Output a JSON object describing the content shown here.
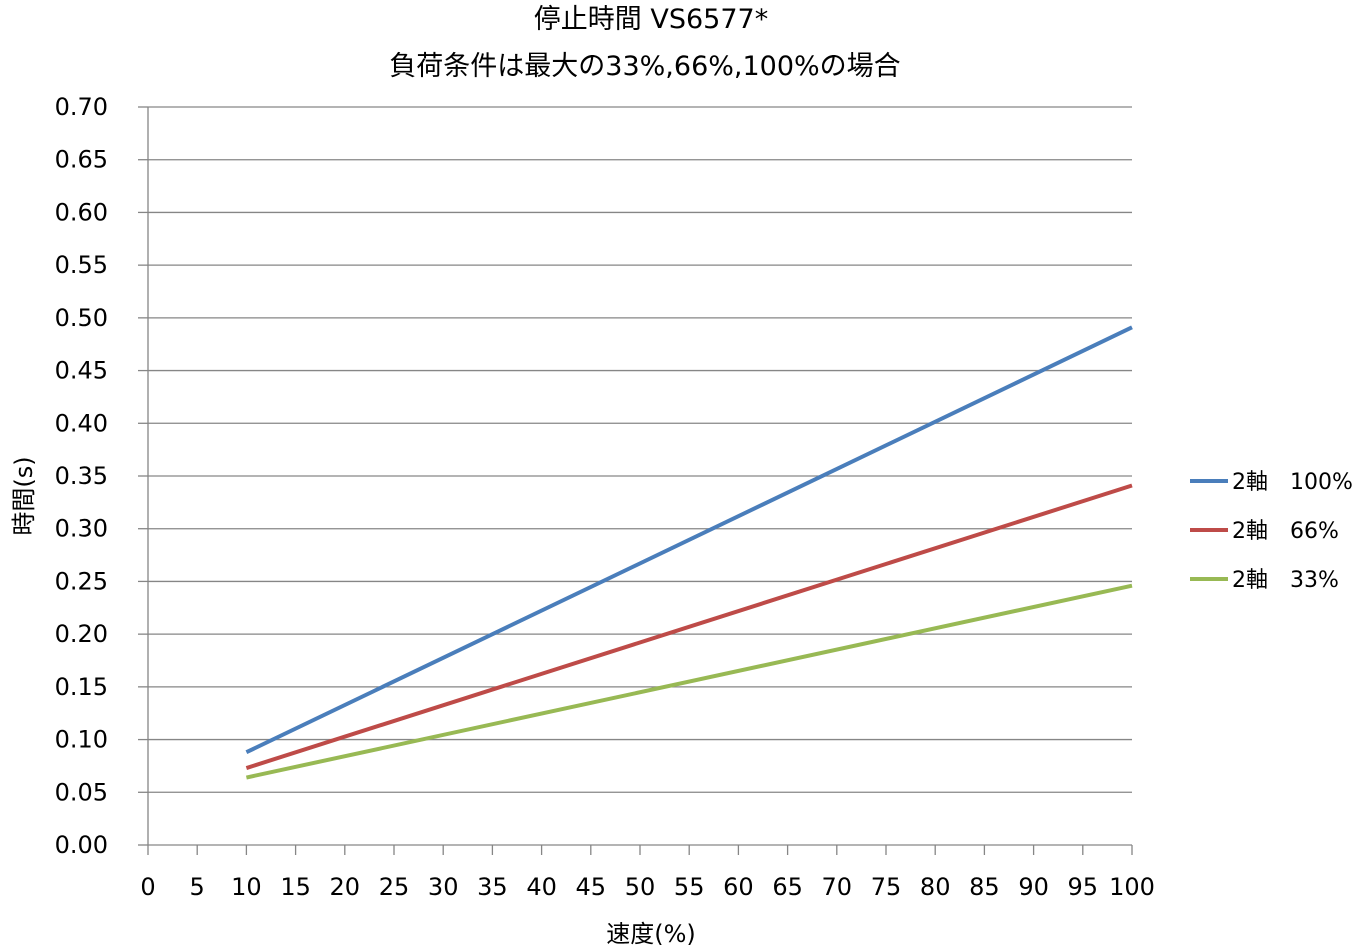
{
  "chart_data": {
    "type": "line",
    "title": "停止時間 VS6577*",
    "subtitle": "負荷条件は最大の33%,66%,100%の場合",
    "xlabel": "速度(%)",
    "ylabel": "時間(s)",
    "xlim": [
      0,
      100
    ],
    "ylim": [
      0,
      0.7
    ],
    "x_ticks": [
      "0",
      "5",
      "10",
      "15",
      "20",
      "25",
      "30",
      "35",
      "40",
      "45",
      "50",
      "55",
      "60",
      "65",
      "70",
      "75",
      "80",
      "85",
      "90",
      "95",
      "100"
    ],
    "y_ticks": [
      "0.00",
      "0.05",
      "0.10",
      "0.15",
      "0.20",
      "0.25",
      "0.30",
      "0.35",
      "0.40",
      "0.45",
      "0.50",
      "0.55",
      "0.60",
      "0.65",
      "0.70"
    ],
    "grid": true,
    "legend_position": "right",
    "series": [
      {
        "name": "2軸　100%",
        "color": "#4a7ebb",
        "x": [
          10,
          100
        ],
        "y": [
          0.088,
          0.491
        ]
      },
      {
        "name": "2軸　66%",
        "color": "#be4b48",
        "x": [
          10,
          100
        ],
        "y": [
          0.073,
          0.341
        ]
      },
      {
        "name": "2軸　33%",
        "color": "#98b954",
        "x": [
          10,
          100
        ],
        "y": [
          0.064,
          0.246
        ]
      }
    ]
  }
}
